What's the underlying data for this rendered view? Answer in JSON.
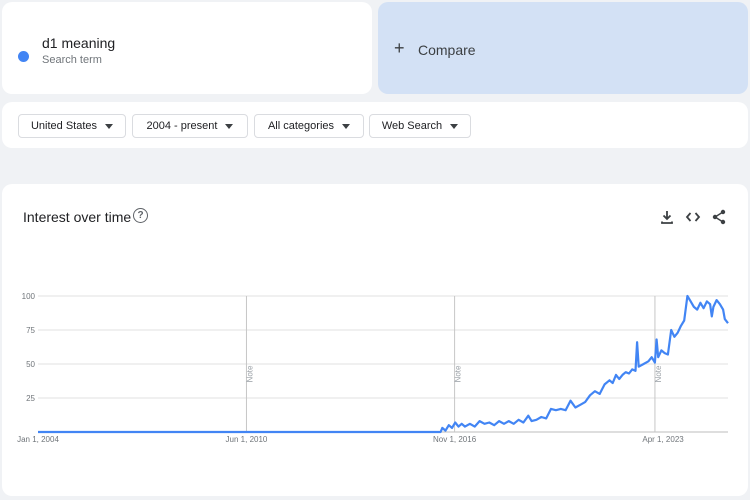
{
  "term": {
    "name": "d1 meaning",
    "subtitle": "Search term",
    "color": "#4285f4"
  },
  "compare": {
    "label": "Compare"
  },
  "filters": [
    {
      "label": "United States"
    },
    {
      "label": "2004 - present"
    },
    {
      "label": "All categories"
    },
    {
      "label": "Web Search"
    }
  ],
  "chart": {
    "title": "Interest over time",
    "icons": [
      "help-icon",
      "download-icon",
      "embed-icon",
      "share-icon"
    ]
  },
  "chart_data": {
    "type": "line",
    "title": "Interest over time",
    "xlabel": "",
    "ylabel": "",
    "ylim": [
      0,
      100
    ],
    "y_ticks": [
      100,
      75,
      50,
      25
    ],
    "x_ticks": [
      {
        "label": "Jan 1, 2004",
        "x": 2004.0
      },
      {
        "label": "Jun 1, 2010",
        "x": 2010.42
      },
      {
        "label": "Nov 1, 2016",
        "x": 2016.83
      },
      {
        "label": "Apr 1, 2023",
        "x": 2023.25
      }
    ],
    "annotations": [
      {
        "label": "Note",
        "x": 2010.42
      },
      {
        "label": "Note",
        "x": 2016.83
      },
      {
        "label": "Note",
        "x": 2023.0
      }
    ],
    "grid": true,
    "series": [
      {
        "color": "#4285f4",
        "points": [
          [
            2004.0,
            0
          ],
          [
            2012.0,
            0
          ],
          [
            2016.0,
            0
          ],
          [
            2016.4,
            0
          ],
          [
            2016.45,
            3
          ],
          [
            2016.55,
            1
          ],
          [
            2016.65,
            5
          ],
          [
            2016.75,
            3
          ],
          [
            2016.85,
            7
          ],
          [
            2016.95,
            4
          ],
          [
            2017.05,
            6
          ],
          [
            2017.15,
            4
          ],
          [
            2017.3,
            6
          ],
          [
            2017.45,
            4
          ],
          [
            2017.6,
            8
          ],
          [
            2017.75,
            6
          ],
          [
            2017.9,
            7
          ],
          [
            2018.05,
            5
          ],
          [
            2018.2,
            8
          ],
          [
            2018.35,
            6
          ],
          [
            2018.5,
            8
          ],
          [
            2018.65,
            6
          ],
          [
            2018.8,
            9
          ],
          [
            2018.95,
            7
          ],
          [
            2019.1,
            12
          ],
          [
            2019.2,
            8
          ],
          [
            2019.35,
            9
          ],
          [
            2019.5,
            11
          ],
          [
            2019.65,
            10
          ],
          [
            2019.8,
            17
          ],
          [
            2019.95,
            16
          ],
          [
            2020.1,
            17
          ],
          [
            2020.25,
            16
          ],
          [
            2020.4,
            23
          ],
          [
            2020.55,
            18
          ],
          [
            2020.7,
            20
          ],
          [
            2020.85,
            22
          ],
          [
            2021.0,
            27
          ],
          [
            2021.15,
            30
          ],
          [
            2021.3,
            28
          ],
          [
            2021.45,
            35
          ],
          [
            2021.6,
            38
          ],
          [
            2021.7,
            36
          ],
          [
            2021.8,
            42
          ],
          [
            2021.9,
            39
          ],
          [
            2022.0,
            42
          ],
          [
            2022.1,
            44
          ],
          [
            2022.2,
            43
          ],
          [
            2022.3,
            46
          ],
          [
            2022.4,
            45
          ],
          [
            2022.45,
            66
          ],
          [
            2022.5,
            48
          ],
          [
            2022.65,
            50
          ],
          [
            2022.8,
            52
          ],
          [
            2022.9,
            55
          ],
          [
            2023.0,
            51
          ],
          [
            2023.05,
            68
          ],
          [
            2023.1,
            55
          ],
          [
            2023.2,
            60
          ],
          [
            2023.3,
            58
          ],
          [
            2023.4,
            57
          ],
          [
            2023.5,
            75
          ],
          [
            2023.6,
            70
          ],
          [
            2023.7,
            73
          ],
          [
            2023.8,
            78
          ],
          [
            2023.9,
            82
          ],
          [
            2024.0,
            100
          ],
          [
            2024.1,
            96
          ],
          [
            2024.2,
            92
          ],
          [
            2024.3,
            90
          ],
          [
            2024.4,
            95
          ],
          [
            2024.5,
            91
          ],
          [
            2024.6,
            96
          ],
          [
            2024.7,
            94
          ],
          [
            2024.75,
            85
          ],
          [
            2024.8,
            92
          ],
          [
            2024.9,
            97
          ],
          [
            2025.0,
            94
          ],
          [
            2025.1,
            90
          ],
          [
            2025.15,
            83
          ],
          [
            2025.25,
            80
          ]
        ]
      }
    ]
  }
}
